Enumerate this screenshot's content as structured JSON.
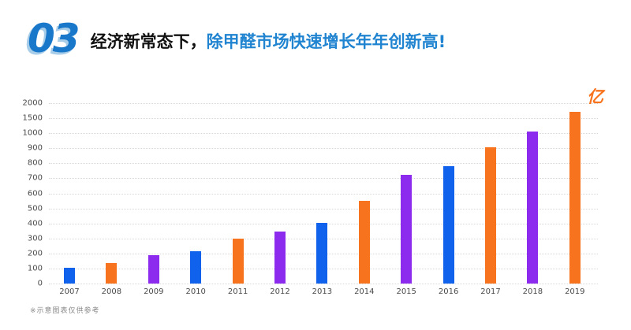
{
  "header": {
    "section_number": "03",
    "title_black": "经济新常态下，",
    "title_blue": "除甲醛市场快速增长年年创新高!"
  },
  "footnote": "※示意图表仅供参考",
  "colors": {
    "number_blue": "#1a78cb",
    "number_shadow": "#a8cde9",
    "title_black": "#111111",
    "title_blue": "#2084d0",
    "bar_blue": "#1061ec",
    "bar_orange": "#f7731d",
    "bar_purple": "#8c2bee",
    "unit_orange": "#f7731d",
    "gridline": "#d8d8d8",
    "axis_text": "#4a4a4a"
  },
  "chart_data": {
    "type": "bar",
    "title": "除甲醛市场规模逐年增长 (2007-2019)",
    "unit_label": "亿",
    "categories": [
      "2007",
      "2008",
      "2009",
      "2010",
      "2011",
      "2012",
      "2013",
      "2014",
      "2015",
      "2016",
      "2017",
      "2018",
      "2019"
    ],
    "values": [
      105,
      135,
      190,
      215,
      300,
      345,
      405,
      550,
      725,
      780,
      905,
      1050,
      1720
    ],
    "bar_colors": [
      "#1061ec",
      "#f7731d",
      "#8c2bee",
      "#1061ec",
      "#f7731d",
      "#8c2bee",
      "#1061ec",
      "#f7731d",
      "#8c2bee",
      "#1061ec",
      "#f7731d",
      "#8c2bee",
      "#f7731d"
    ],
    "y_ticks": [
      0,
      100,
      200,
      300,
      400,
      500,
      600,
      700,
      800,
      900,
      1000,
      1500,
      2000
    ],
    "y_axis_scale": "segmented: equal pixel spacing per tick (non-linear above 1000)",
    "xlabel": "",
    "ylabel": "",
    "grid": "horizontal-dotted",
    "legend": "none"
  }
}
